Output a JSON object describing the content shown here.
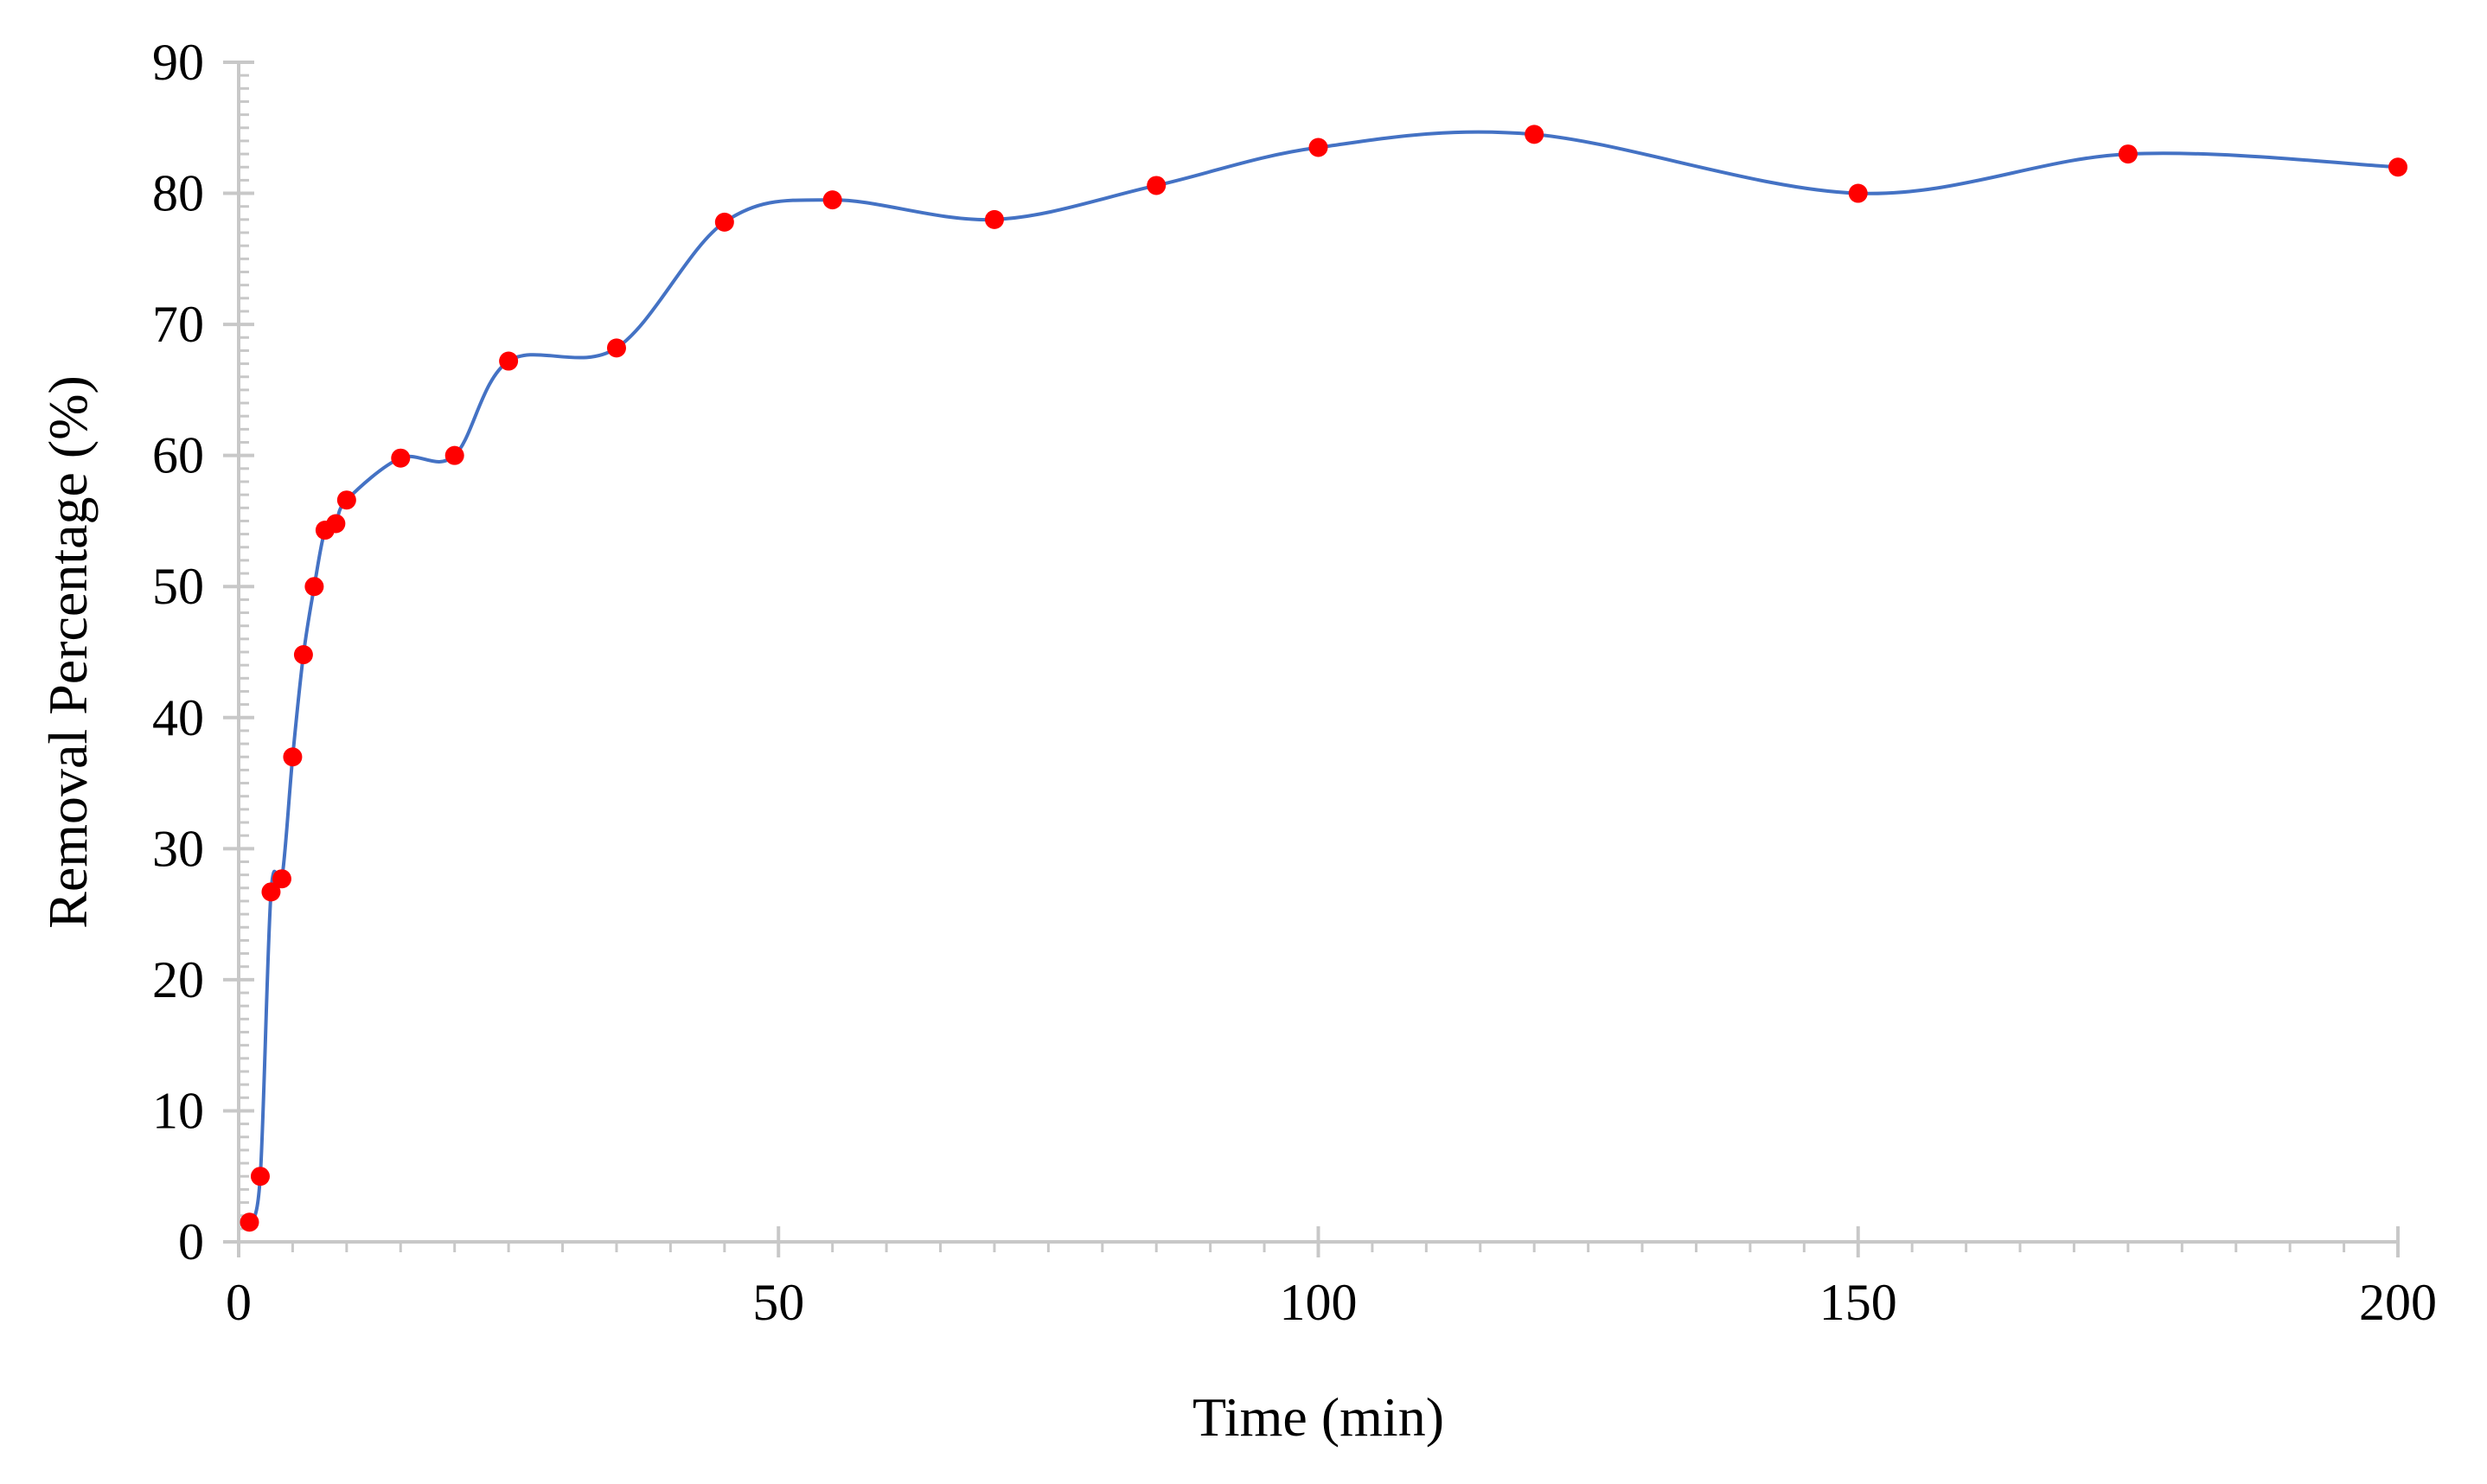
{
  "chart_data": {
    "type": "line",
    "title": "",
    "xlabel": "Time (min)",
    "ylabel": "Removal Percentage (%)",
    "xlim": [
      0,
      200
    ],
    "ylim": [
      0,
      90
    ],
    "xticks": [
      "0",
      "50",
      "100",
      "150",
      "200"
    ],
    "yticks": [
      "0",
      "10",
      "20",
      "30",
      "40",
      "50",
      "60",
      "70",
      "80",
      "90"
    ],
    "grid": false,
    "legend": "none",
    "series": [
      {
        "x": [
          1,
          2,
          3,
          4,
          5,
          6,
          7,
          8,
          9,
          10,
          15,
          20,
          25,
          35,
          45,
          55,
          70,
          85,
          100,
          120,
          150,
          175,
          200
        ],
        "y": [
          1.5,
          5,
          26.7,
          27.7,
          37,
          44.8,
          50,
          54.3,
          54.8,
          56.6,
          59.8,
          60,
          67.2,
          68.2,
          77.8,
          79.5,
          78,
          80.6,
          83.5,
          84.5,
          80,
          83,
          82
        ],
        "line_color": "#4472c4",
        "marker_color": "#ff0000",
        "smooth": true
      }
    ]
  }
}
